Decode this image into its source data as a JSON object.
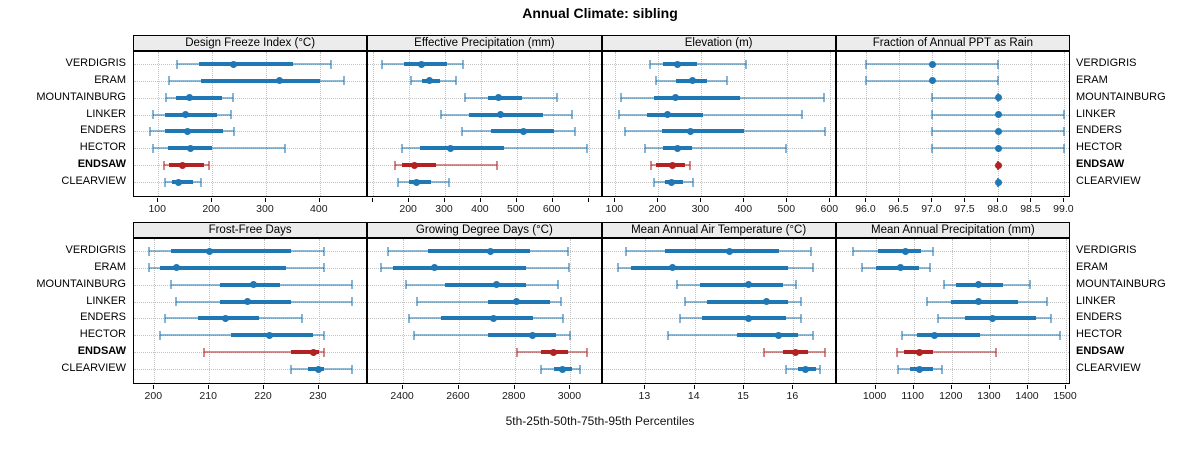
{
  "title": "Annual Climate: sibling",
  "caption": "5th-25th-50th-75th-95th Percentiles",
  "stations": [
    "VERDIGRIS",
    "ERAM",
    "MOUNTAINBURG",
    "LINKER",
    "ENDERS",
    "HECTOR",
    "ENDSAW",
    "CLEARVIEW"
  ],
  "highlight_station": "ENDSAW",
  "colors": {
    "series_normal": "#1f77b4",
    "series_highlight": "#b22222",
    "strip_bg": "#ececec",
    "grid": "#c3c3c3",
    "panel_border": "#000000"
  },
  "chart_data": {
    "type": "dot-whisker-interval",
    "note": "Each row shows 5th-25th-50th-75th-95th percentiles per station; thin line = 5th-95th, thick bar = 25th-75th, dot = median. ENDSAW highlighted in red.",
    "percentiles": [
      5,
      25,
      50,
      75,
      95
    ],
    "legend_position": "none",
    "grid": "dotted",
    "panels": [
      {
        "title": "Design Freeze Index (°C)",
        "row": 0,
        "col": 0,
        "xlim": [
          55,
          490
        ],
        "ticks": [
          100,
          200,
          300,
          400
        ],
        "tick_labels": [
          "100",
          "200",
          "300",
          "400"
        ],
        "series": [
          [
            135,
            175,
            240,
            350,
            420
          ],
          [
            120,
            180,
            325,
            400,
            445
          ],
          [
            115,
            133,
            158,
            218,
            238
          ],
          [
            90,
            112,
            150,
            210,
            235
          ],
          [
            85,
            112,
            155,
            220,
            240
          ],
          [
            90,
            118,
            160,
            200,
            335
          ],
          [
            110,
            120,
            145,
            185,
            195
          ],
          [
            112,
            125,
            138,
            165,
            180
          ]
        ]
      },
      {
        "title": "Effective Precipitation (mm)",
        "row": 0,
        "col": 1,
        "xlim": [
          86,
          739
        ],
        "ticks": [
          100,
          200,
          300,
          400,
          500,
          600,
          700
        ],
        "tick_labels": [
          "",
          "200",
          "300",
          "400",
          "500",
          "600",
          ""
        ],
        "series": [
          [
            125,
            185,
            235,
            305,
            350
          ],
          [
            205,
            235,
            258,
            285,
            330
          ],
          [
            355,
            420,
            450,
            515,
            612
          ],
          [
            288,
            368,
            455,
            572,
            655
          ],
          [
            348,
            428,
            518,
            605,
            662
          ],
          [
            180,
            230,
            315,
            465,
            695
          ],
          [
            160,
            180,
            215,
            275,
            445
          ],
          [
            170,
            200,
            220,
            260,
            310
          ]
        ]
      },
      {
        "title": "Elevation (m)",
        "row": 0,
        "col": 2,
        "xlim": [
          70,
          615
        ],
        "ticks": [
          100,
          200,
          300,
          400,
          500,
          600
        ],
        "tick_labels": [
          "100",
          "200",
          "300",
          "400",
          "500",
          "600"
        ],
        "series": [
          [
            180,
            210,
            245,
            290,
            405
          ],
          [
            195,
            240,
            280,
            313,
            360
          ],
          [
            113,
            190,
            240,
            390,
            585
          ],
          [
            108,
            174,
            222,
            305,
            535
          ],
          [
            123,
            208,
            274,
            400,
            588
          ],
          [
            170,
            210,
            245,
            278,
            498
          ],
          [
            183,
            195,
            233,
            262,
            274
          ],
          [
            190,
            215,
            230,
            258,
            280
          ]
        ]
      },
      {
        "title": "Fraction of Annual PPT as Rain",
        "row": 0,
        "col": 3,
        "xlim": [
          95.55,
          99.1
        ],
        "ticks": [
          96.0,
          96.5,
          97.0,
          97.5,
          98.0,
          98.5,
          99.0
        ],
        "tick_labels": [
          "96.0",
          "96.5",
          "97.0",
          "97.5",
          "98.0",
          "98.5",
          "99.0"
        ],
        "series": [
          [
            96,
            97,
            97,
            97,
            98
          ],
          [
            96,
            97,
            97,
            97,
            98
          ],
          [
            97,
            98,
            98,
            98,
            98
          ],
          [
            97,
            98,
            98,
            98,
            99
          ],
          [
            97,
            98,
            98,
            98,
            99
          ],
          [
            97,
            98,
            98,
            98,
            99
          ],
          [
            98,
            98,
            98,
            98,
            98
          ],
          [
            98,
            98,
            98,
            98,
            98
          ]
        ]
      },
      {
        "title": "Frost-Free Days",
        "row": 1,
        "col": 0,
        "xlim": [
          196.3,
          239
        ],
        "ticks": [
          200,
          210,
          220,
          230
        ],
        "tick_labels": [
          "200",
          "210",
          "220",
          "230"
        ],
        "series": [
          [
            199,
            203,
            210,
            225,
            231
          ],
          [
            199,
            201,
            204,
            224,
            231
          ],
          [
            203,
            212,
            218,
            223,
            236
          ],
          [
            204,
            212,
            217,
            225,
            236
          ],
          [
            202,
            208,
            213,
            219,
            227
          ],
          [
            201,
            214,
            221,
            229,
            231
          ],
          [
            209,
            225,
            229,
            230,
            231
          ],
          [
            225,
            228,
            230,
            231,
            236
          ]
        ]
      },
      {
        "title": "Growing Degree Days (°C)",
        "row": 1,
        "col": 1,
        "xlim": [
          2275,
          3115
        ],
        "ticks": [
          2400,
          2600,
          2800,
          3000
        ],
        "tick_labels": [
          "2400",
          "2600",
          "2800",
          "3000"
        ],
        "series": [
          [
            2345,
            2490,
            2715,
            2855,
            2990
          ],
          [
            2320,
            2365,
            2512,
            2840,
            2995
          ],
          [
            2410,
            2550,
            2735,
            2840,
            2955
          ],
          [
            2450,
            2705,
            2805,
            2925,
            2965
          ],
          [
            2420,
            2535,
            2725,
            2865,
            2975
          ],
          [
            2440,
            2705,
            2865,
            2950,
            3000
          ],
          [
            2810,
            2895,
            2940,
            2990,
            3060
          ],
          [
            2895,
            2940,
            2970,
            3005,
            3035
          ]
        ]
      },
      {
        "title": "Mean Annual Air Temperature (°C)",
        "row": 1,
        "col": 2,
        "xlim": [
          12.13,
          16.88
        ],
        "ticks": [
          13,
          14,
          15,
          16
        ],
        "tick_labels": [
          "13",
          "14",
          "15",
          "16"
        ],
        "series": [
          [
            12.6,
            13.4,
            14.7,
            15.7,
            16.35
          ],
          [
            12.45,
            12.7,
            13.55,
            15.9,
            16.4
          ],
          [
            13.65,
            14.1,
            15.1,
            15.8,
            16.05
          ],
          [
            13.8,
            14.25,
            15.45,
            15.9,
            16.15
          ],
          [
            13.7,
            14.15,
            15.1,
            15.85,
            16.15
          ],
          [
            13.45,
            14.85,
            15.7,
            16.1,
            16.4
          ],
          [
            15.4,
            15.8,
            16.05,
            16.3,
            16.65
          ],
          [
            15.85,
            16.1,
            16.25,
            16.45,
            16.55
          ]
        ]
      },
      {
        "title": "Mean Annual Precipitation (mm)",
        "row": 1,
        "col": 3,
        "xlim": [
          898,
          1513
        ],
        "ticks": [
          1000,
          1100,
          1200,
          1300,
          1400,
          1500
        ],
        "tick_labels": [
          "1000",
          "1100",
          "1200",
          "1300",
          "1400",
          "1500"
        ],
        "series": [
          [
            940,
            1005,
            1078,
            1120,
            1150
          ],
          [
            965,
            1000,
            1065,
            1113,
            1143
          ],
          [
            1180,
            1210,
            1270,
            1335,
            1405
          ],
          [
            1135,
            1197,
            1270,
            1375,
            1450
          ],
          [
            1165,
            1235,
            1307,
            1420,
            1460
          ],
          [
            1068,
            1110,
            1155,
            1275,
            1485
          ],
          [
            1055,
            1075,
            1115,
            1150,
            1315
          ],
          [
            1060,
            1090,
            1114,
            1150,
            1174
          ]
        ]
      }
    ]
  }
}
